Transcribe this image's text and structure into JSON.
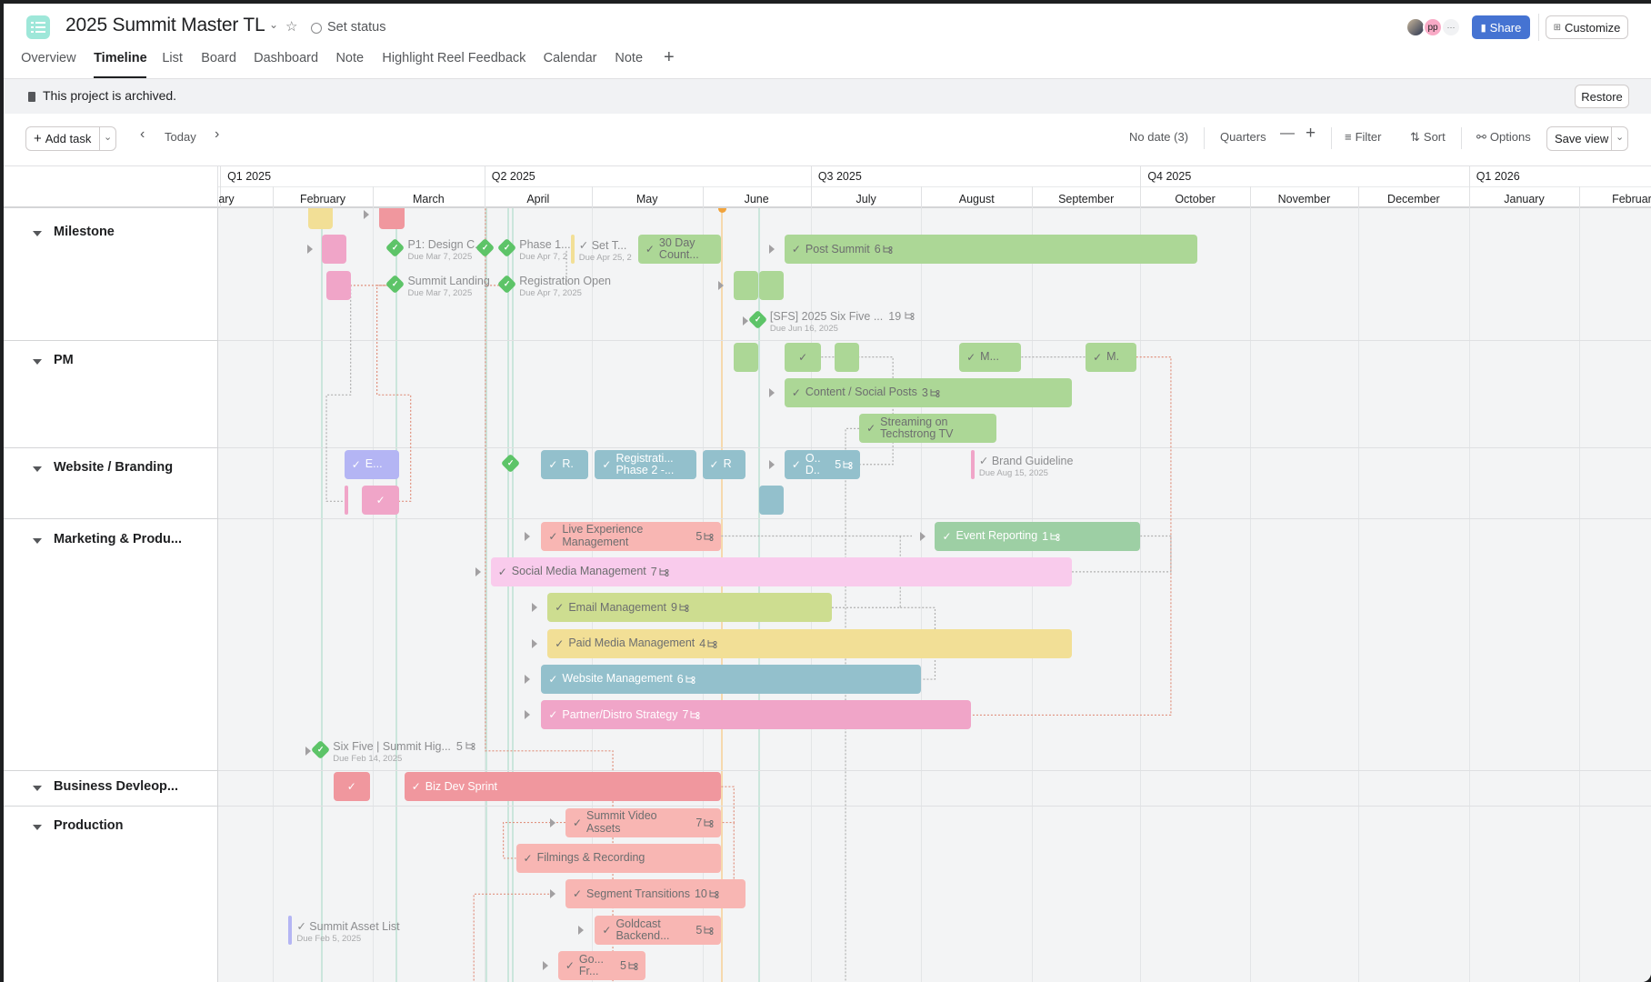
{
  "header": {
    "title": "2025 Summit Master TL",
    "set_status": "Set status",
    "share": "Share",
    "customize": "Customize",
    "avatar_initials": "pp",
    "more": "···"
  },
  "tabs": [
    {
      "label": "Overview"
    },
    {
      "label": "Timeline",
      "active": true
    },
    {
      "label": "List"
    },
    {
      "label": "Board"
    },
    {
      "label": "Dashboard"
    },
    {
      "label": "Note"
    },
    {
      "label": "Highlight Reel Feedback"
    },
    {
      "label": "Calendar"
    },
    {
      "label": "Note"
    }
  ],
  "banner": {
    "text": "This project is archived.",
    "restore": "Restore"
  },
  "toolbar": {
    "add_task": "Add task",
    "today": "Today",
    "no_date": "No date (3)",
    "zoom_level": "Quarters",
    "filter": "Filter",
    "sort": "Sort",
    "options": "Options",
    "save_view": "Save view"
  },
  "timeline": {
    "quarters": [
      "Q1 2025",
      "Q2 2025",
      "Q3 2025",
      "Q4 2025",
      "Q1 2026"
    ],
    "months": [
      "ary",
      "February",
      "March",
      "April",
      "May",
      "June",
      "July",
      "August",
      "September",
      "October",
      "November",
      "December",
      "January",
      "February"
    ]
  },
  "colors": {
    "green": "#acd796",
    "pink": "#f0a5c8",
    "red": "#f0979e",
    "yellow": "#f2df96",
    "blue": "#93c0cc",
    "purple": "#b4b5f4",
    "salmon": "#f8b6b3",
    "lightpink": "#f9cbec",
    "lime": "#cddd90",
    "teal_green": "#9dcfa4",
    "milestone": "#5dc468",
    "today": "#f1a33b",
    "share": "#4573d2"
  },
  "sections": [
    {
      "name": "Milestone",
      "tasks": [
        {
          "kind": "bar",
          "color": "yellow"
        },
        {
          "kind": "bar",
          "color": "red"
        },
        {
          "kind": "bar",
          "color": "pink"
        },
        {
          "kind": "milestone",
          "label": "P1: Design C...",
          "sub": "Due Mar 7, 2025"
        },
        {
          "kind": "milestone",
          "label": ""
        },
        {
          "kind": "milestone",
          "label": "Phase 1...",
          "sub": "Due Apr 7, 2"
        },
        {
          "kind": "marker",
          "color": "yellow",
          "label": "Set T...",
          "sub": "Due Apr 25, 2",
          "check": true
        },
        {
          "kind": "bar",
          "color": "green",
          "label": "30 Day Count...",
          "check": true
        },
        {
          "kind": "bar",
          "color": "green",
          "label": "Post Summit",
          "count": "6",
          "check": true
        },
        {
          "kind": "bar",
          "color": "pink"
        },
        {
          "kind": "milestone",
          "label": "Summit Landing",
          "sub": "Due Mar 7, 2025"
        },
        {
          "kind": "milestone",
          "label": "Registration Open",
          "sub": "Due Apr 7, 2025"
        },
        {
          "kind": "bar",
          "color": "green"
        },
        {
          "kind": "bar",
          "color": "green"
        },
        {
          "kind": "milestone",
          "label": "[SFS] 2025 Six Five ...",
          "count": "19",
          "sub": "Due Jun 16, 2025"
        }
      ]
    },
    {
      "name": "PM",
      "tasks": [
        {
          "kind": "bar",
          "color": "green"
        },
        {
          "kind": "bar",
          "color": "green",
          "check": true,
          "label": ""
        },
        {
          "kind": "bar",
          "color": "green"
        },
        {
          "kind": "bar",
          "color": "green",
          "label": "M...",
          "check": true
        },
        {
          "kind": "bar",
          "color": "green",
          "label": "M.",
          "check": true
        },
        {
          "kind": "bar",
          "color": "green",
          "label": "Content / Social Posts",
          "count": "3",
          "check": true
        },
        {
          "kind": "bar",
          "color": "green",
          "label": "Streaming on Techstrong TV",
          "check": true
        }
      ]
    },
    {
      "name": "Website / Branding",
      "tasks": [
        {
          "kind": "bar",
          "color": "purple",
          "label": "E...",
          "check": true,
          "white": true
        },
        {
          "kind": "milestone",
          "label": ""
        },
        {
          "kind": "bar",
          "color": "blue",
          "label": "R.",
          "check": true,
          "white": true
        },
        {
          "kind": "bar",
          "color": "blue",
          "label": "Registrati... Phase 2 -...",
          "check": true,
          "white": true
        },
        {
          "kind": "bar",
          "color": "blue",
          "label": "R",
          "check": true,
          "white": true
        },
        {
          "kind": "bar",
          "color": "blue",
          "label": "O.. D..",
          "count": "5",
          "check": true,
          "white": true
        },
        {
          "kind": "marker",
          "color": "pink",
          "label": "Brand Guideline",
          "sub": "Due Aug 15, 2025",
          "check": true
        },
        {
          "kind": "marker",
          "color": "pink"
        },
        {
          "kind": "bar",
          "color": "pink",
          "label": "",
          "check": true,
          "white": true
        },
        {
          "kind": "bar",
          "color": "blue"
        }
      ]
    },
    {
      "name": "Marketing & Produ...",
      "tasks": [
        {
          "kind": "bar",
          "color": "salmon",
          "label": "Live Experience Management",
          "count": "5",
          "check": true
        },
        {
          "kind": "bar",
          "color": "teal_green",
          "label": "Event Reporting",
          "count": "1",
          "check": true,
          "white": true
        },
        {
          "kind": "bar",
          "color": "lightpink",
          "label": "Social Media Management",
          "count": "7",
          "check": true
        },
        {
          "kind": "bar",
          "color": "lime",
          "label": "Email Management",
          "count": "9",
          "check": true
        },
        {
          "kind": "bar",
          "color": "yellow",
          "label": "Paid Media Management",
          "count": "4",
          "check": true
        },
        {
          "kind": "bar",
          "color": "blue",
          "label": "Website Management",
          "count": "6",
          "check": true,
          "white": true
        },
        {
          "kind": "bar",
          "color": "pink",
          "label": "Partner/Distro Strategy",
          "count": "7",
          "check": true,
          "white": true
        },
        {
          "kind": "milestone",
          "label": "Six Five | Summit Hig...",
          "count": "5",
          "sub": "Due Feb 14, 2025"
        }
      ]
    },
    {
      "name": "Business Devleop...",
      "tasks": [
        {
          "kind": "bar",
          "color": "red",
          "label": "",
          "check": true,
          "white": true
        },
        {
          "kind": "bar",
          "color": "red",
          "label": "Biz Dev Sprint",
          "check": true,
          "white": true
        }
      ]
    },
    {
      "name": "Production",
      "tasks": [
        {
          "kind": "bar",
          "color": "salmon",
          "label": "Summit Video Assets",
          "count": "7",
          "check": true
        },
        {
          "kind": "bar",
          "color": "salmon",
          "label": "Filmings & Recording",
          "check": true
        },
        {
          "kind": "bar",
          "color": "salmon",
          "label": "Segment Transitions",
          "count": "10",
          "check": true
        },
        {
          "kind": "marker",
          "color": "purple",
          "label": "Summit Asset List",
          "sub": "Due Feb 5, 2025",
          "check": true
        },
        {
          "kind": "bar",
          "color": "salmon",
          "label": "Goldcast Backend...",
          "count": "5",
          "check": true
        },
        {
          "kind": "bar",
          "color": "salmon",
          "label": "Go... Fr...",
          "count": "5",
          "check": true
        }
      ]
    }
  ]
}
